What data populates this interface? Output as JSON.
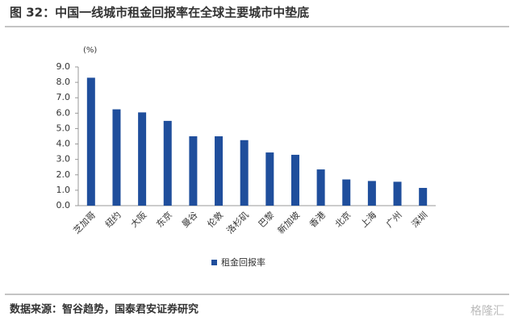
{
  "chart_data": {
    "type": "bar",
    "title": "图 32：中国一线城市租金回报率在全球主要城市中垫底",
    "y_unit": "(%)",
    "categories": [
      "芝加哥",
      "纽约",
      "大阪",
      "东京",
      "曼谷",
      "伦敦",
      "洛杉矶",
      "巴黎",
      "新加坡",
      "香港",
      "北京",
      "上海",
      "广州",
      "深圳"
    ],
    "series": [
      {
        "name": "租金回报率",
        "color": "#1f4e9c",
        "values": [
          8.3,
          6.25,
          6.05,
          5.5,
          4.5,
          4.5,
          4.25,
          3.45,
          3.3,
          2.35,
          1.7,
          1.6,
          1.55,
          1.15
        ]
      }
    ],
    "ylim": [
      0,
      9
    ],
    "yticks": [
      {
        "value": 0,
        "label": "0.0"
      },
      {
        "value": 1,
        "label": "1.0"
      },
      {
        "value": 2,
        "label": "2.0"
      },
      {
        "value": 3,
        "label": "3.0"
      },
      {
        "value": 4,
        "label": "4.0"
      },
      {
        "value": 5,
        "label": "5.0"
      },
      {
        "value": 6,
        "label": "6.0"
      },
      {
        "value": 7,
        "label": "7.0"
      },
      {
        "value": 8,
        "label": "8.0"
      },
      {
        "value": 9,
        "label": "9.0"
      }
    ],
    "grid": false,
    "source": "数据来源：智谷趋势，国泰君安证券研究",
    "watermark": "格隆汇"
  }
}
